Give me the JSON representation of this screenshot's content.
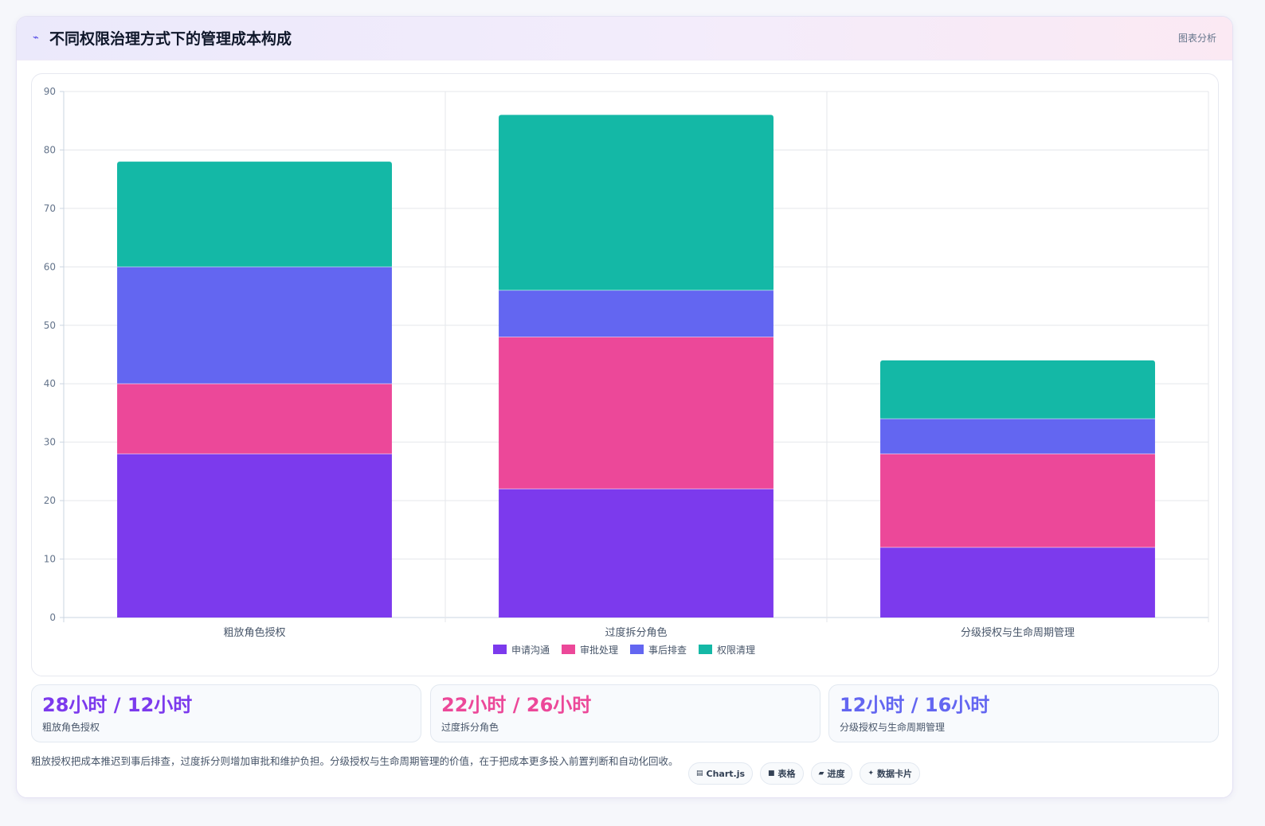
{
  "header": {
    "title": "不同权限治理方式下的管理成本构成",
    "link_label": "图表分析",
    "icon": "chart-icon"
  },
  "chart_data": {
    "type": "bar",
    "stacked": true,
    "categories": [
      "粗放角色授权",
      "过度拆分角色",
      "分级授权与生命周期管理"
    ],
    "series": [
      {
        "name": "申请沟通",
        "color": "#7c3aed",
        "values": [
          28,
          22,
          12
        ]
      },
      {
        "name": "审批处理",
        "color": "#ec4899",
        "values": [
          12,
          26,
          16
        ]
      },
      {
        "name": "事后排查",
        "color": "#6366f1",
        "values": [
          20,
          8,
          6
        ]
      },
      {
        "name": "权限清理",
        "color": "#14b8a6",
        "values": [
          18,
          30,
          10
        ]
      }
    ],
    "yticks": [
      "0",
      "10",
      "20",
      "30",
      "40",
      "50",
      "60",
      "70",
      "80",
      "90"
    ],
    "ylim": [
      0,
      90
    ],
    "grid": true,
    "legend_position": "bottom"
  },
  "stats": [
    {
      "value": "28小时 / 12小时",
      "label": "粗放角色授权",
      "color": "#7c3aed"
    },
    {
      "value": "22小时 / 26小时",
      "label": "过度拆分角色",
      "color": "#ec4899"
    },
    {
      "value": "12小时 / 16小时",
      "label": "分级授权与生命周期管理",
      "color": "#6366f1"
    }
  ],
  "footer": {
    "note": "粗放授权把成本推迟到事后排查，过度拆分则增加审批和维护负担。分级授权与生命周期管理的价值，在于把成本更多投入前置判断和自动化回收。",
    "tags": [
      {
        "label": "Chart.js",
        "icon": "chart-icon",
        "glyph": "▤"
      },
      {
        "label": "表格",
        "icon": "table-icon",
        "glyph": "■"
      },
      {
        "label": "进度",
        "icon": "progress-icon",
        "glyph": "▰"
      },
      {
        "label": "数据卡片",
        "icon": "card-icon",
        "glyph": "✦"
      }
    ]
  }
}
